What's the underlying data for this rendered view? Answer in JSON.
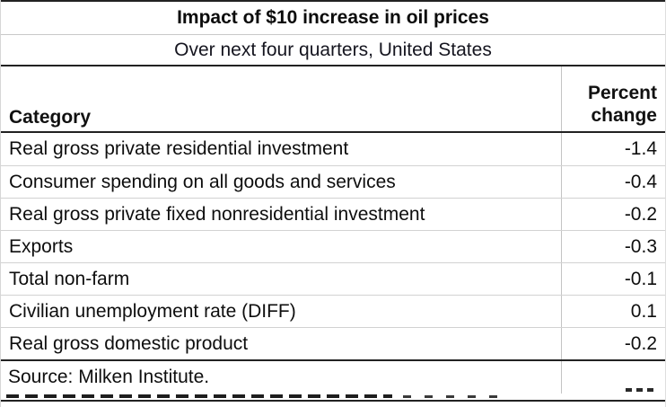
{
  "title": "Impact of $10 increase in oil prices",
  "subtitle": "Over next four quarters, United States",
  "table": {
    "category_header": "Category",
    "value_header_line1": "Percent",
    "value_header_line2": "change",
    "rows": [
      {
        "category": "Real gross private residential investment",
        "value": "-1.4"
      },
      {
        "category": "Consumer spending on all goods and services",
        "value": "-0.4"
      },
      {
        "category": "Real gross private fixed nonresidential investment",
        "value": "-0.2"
      },
      {
        "category": "Exports",
        "value": "-0.3"
      },
      {
        "category": "Total non-farm",
        "value": "-0.1"
      },
      {
        "category": "Civilian unemployment rate (DIFF)",
        "value": "0.1"
      },
      {
        "category": "Real gross domestic product",
        "value": "-0.2"
      }
    ],
    "source": "Source: Milken Institute."
  },
  "chart_data": {
    "type": "table",
    "title": "Impact of $10 increase in oil prices",
    "subtitle": "Over next four quarters, United States",
    "columns": [
      "Category",
      "Percent change"
    ],
    "categories": [
      "Real gross private residential investment",
      "Consumer spending on all goods and services",
      "Real gross private fixed nonresidential investment",
      "Exports",
      "Total non-farm",
      "Civilian unemployment rate (DIFF)",
      "Real gross domestic product"
    ],
    "values": [
      -1.4,
      -0.4,
      -0.2,
      -0.3,
      -0.1,
      0.1,
      -0.2
    ],
    "source": "Source: Milken Institute."
  },
  "colors": {
    "border_dark": "#222222",
    "divider_light": "#c9c9c9",
    "column_divider": "#c4c4c4",
    "text": "#0e0e0e"
  }
}
